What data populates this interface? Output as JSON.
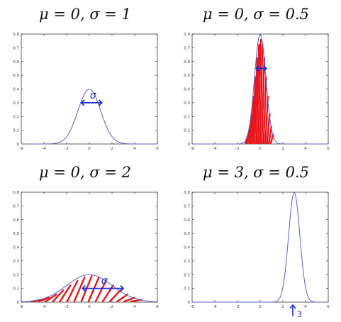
{
  "chart_data": [
    {
      "type": "line",
      "title": "μ = 0, σ = 1",
      "mu": 0,
      "sigma": 1,
      "xlim": [
        -6,
        6
      ],
      "ylim": [
        0,
        0.8
      ],
      "xticks": [
        -6,
        -4,
        -2,
        0,
        2,
        4,
        6
      ],
      "yticks": [
        0,
        0.1,
        0.2,
        0.3,
        0.4,
        0.5,
        0.6,
        0.7,
        0.8
      ],
      "peak": 0.399,
      "line_color": "#5b5fc7",
      "annotations": [
        {
          "text": "σ",
          "kind": "width-arrow",
          "color": "#1a2fd1",
          "at_x": 0.2,
          "at_y": 0.3
        }
      ]
    },
    {
      "type": "area",
      "title": "μ = 0, σ = 0.5",
      "mu": 0,
      "sigma": 0.5,
      "xlim": [
        -6,
        6
      ],
      "ylim": [
        0,
        0.8
      ],
      "xticks": [
        -6,
        -4,
        -2,
        0,
        2,
        4,
        6
      ],
      "yticks": [
        0,
        0.1,
        0.2,
        0.3,
        0.4,
        0.5,
        0.6,
        0.7,
        0.8
      ],
      "peak": 0.798,
      "line_color": "#5b5fc7",
      "hatch_color": "#e8151b",
      "annotations": [
        {
          "text": "",
          "kind": "width-arrow",
          "color": "#1a2fd1",
          "at_x": 0.1,
          "at_y": 0.55
        }
      ]
    },
    {
      "type": "area",
      "title": "μ = 0, σ = 2",
      "mu": 0,
      "sigma": 2,
      "xlim": [
        -6,
        6
      ],
      "ylim": [
        0,
        0.8
      ],
      "xticks": [
        -6,
        -4,
        -2,
        0,
        2,
        4,
        6
      ],
      "yticks": [
        0,
        0.1,
        0.2,
        0.3,
        0.4,
        0.5,
        0.6,
        0.7,
        0.8
      ],
      "peak": 0.199,
      "line_color": "#5b5fc7",
      "hatch_color": "#e8151b",
      "annotations": [
        {
          "text": "σ",
          "kind": "width-arrow",
          "color": "#1a2fd1",
          "at_x": 1.2,
          "at_y": 0.1
        }
      ]
    },
    {
      "type": "line",
      "title": "μ = 3, σ = 0.5",
      "mu": 3,
      "sigma": 0.5,
      "xlim": [
        -6,
        6
      ],
      "ylim": [
        0,
        0.8
      ],
      "xticks": [
        -6,
        -4,
        -2,
        0,
        2,
        4,
        6
      ],
      "yticks": [
        0,
        0.1,
        0.2,
        0.3,
        0.4,
        0.5,
        0.6,
        0.7,
        0.8
      ],
      "peak": 0.798,
      "line_color": "#5b5fc7",
      "annotations": [
        {
          "text": "3",
          "kind": "up-arrow-at-mean",
          "color": "#1a2fd1",
          "at_x": 3,
          "at_y": 0
        }
      ]
    }
  ]
}
